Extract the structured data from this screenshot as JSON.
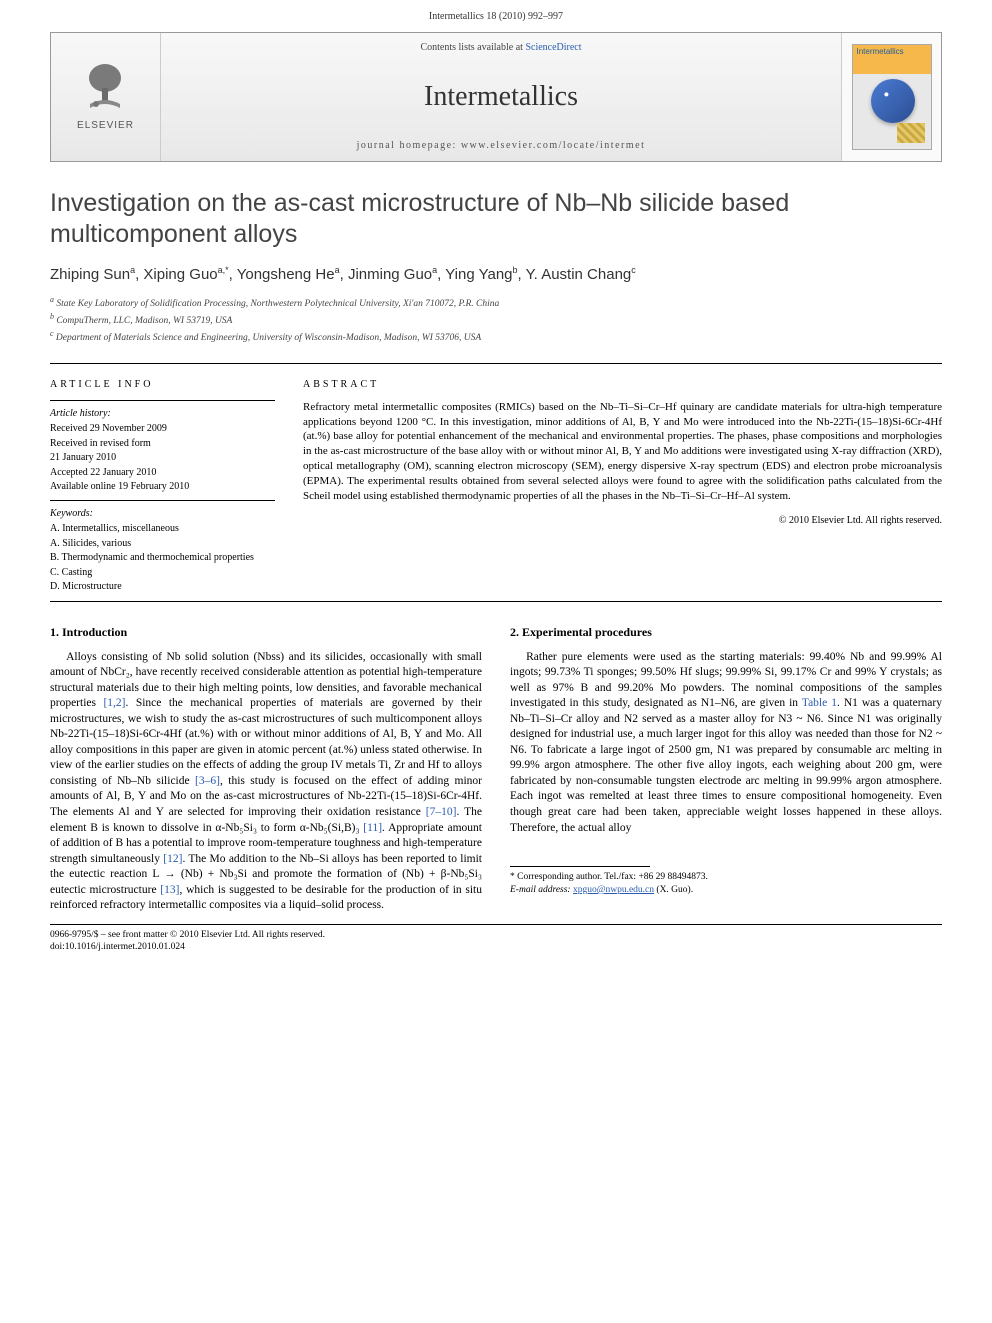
{
  "page_header": "Intermetallics 18 (2010) 992–997",
  "banner": {
    "contents_prefix": "Contents lists available at ",
    "contents_link": "ScienceDirect",
    "journal": "Intermetallics",
    "homepage": "journal homepage: www.elsevier.com/locate/intermet",
    "publisher": "ELSEVIER",
    "cover_title": "Intermetallics"
  },
  "title": "Investigation on the as-cast microstructure of Nb–Nb silicide based multicomponent alloys",
  "authors_html": "Zhiping Sun<sup>a</sup>, Xiping Guo<sup>a,*</sup>, Yongsheng He<sup>a</sup>, Jinming Guo<sup>a</sup>, Ying Yang<sup>b</sup>, Y. Austin Chang<sup>c</sup>",
  "affiliations": [
    "a State Key Laboratory of Solidification Processing, Northwestern Polytechnical University, Xi'an 710072, P.R. China",
    "b CompuTherm, LLC, Madison, WI 53719, USA",
    "c Department of Materials Science and Engineering, University of Wisconsin-Madison, Madison, WI 53706, USA"
  ],
  "info_left": {
    "heading": "ARTICLE INFO",
    "history_label": "Article history:",
    "history": [
      "Received 29 November 2009",
      "Received in revised form",
      "21 January 2010",
      "Accepted 22 January 2010",
      "Available online 19 February 2010"
    ],
    "keywords_label": "Keywords:",
    "keywords": [
      "A. Intermetallics, miscellaneous",
      "A. Silicides, various",
      "B. Thermodynamic and thermochemical properties",
      "C. Casting",
      "D. Microstructure"
    ]
  },
  "abstract": {
    "heading": "ABSTRACT",
    "text": "Refractory metal intermetallic composites (RMICs) based on the Nb–Ti–Si–Cr–Hf quinary are candidate materials for ultra-high temperature applications beyond 1200 °C. In this investigation, minor additions of Al, B, Y and Mo were introduced into the Nb-22Ti-(15–18)Si-6Cr-4Hf (at.%) base alloy for potential enhancement of the mechanical and environmental properties. The phases, phase compositions and morphologies in the as-cast microstructure of the base alloy with or without minor Al, B, Y and Mo additions were investigated using X-ray diffraction (XRD), optical metallography (OM), scanning electron microscopy (SEM), energy dispersive X-ray spectrum (EDS) and electron probe microanalysis (EPMA). The experimental results obtained from several selected alloys were found to agree with the solidification paths calculated from the Scheil model using established thermodynamic properties of all the phases in the Nb–Ti–Si–Cr–Hf–Al system.",
    "copyright": "© 2010 Elsevier Ltd. All rights reserved."
  },
  "sections": {
    "s1_heading": "1. Introduction",
    "s1_p1_a": "Alloys consisting of Nb solid solution (Nbss) and its silicides, occasionally with small amount of NbCr₂, have recently received considerable attention as potential high-temperature structural materials due to their high melting points, low densities, and favorable mechanical properties ",
    "s1_p1_cite1": "[1,2]",
    "s1_p1_b": ". Since the mechanical properties of materials are governed by their microstructures, we wish to study the as-cast microstructures of such multicomponent alloys Nb-22Ti-(15–18)Si-6Cr-4Hf (at.%) with or without minor additions of Al, B, Y and Mo. All alloy compositions in this paper are given in atomic percent (at.%) unless stated otherwise. In view of the earlier studies on the effects of adding the group IV metals Ti, Zr and Hf to alloys consisting of Nb–Nb silicide ",
    "s1_p1_cite2": "[3–6]",
    "s1_p1_c": ", this study is focused on the effect of adding minor amounts of Al, B, Y and Mo on the as-cast microstructures of Nb-22Ti-(15–18)Si-6Cr-4Hf. The elements Al and Y are selected for improving their oxidation resistance ",
    "s1_p1_cite3": "[7–10]",
    "s1_p1_d": ". The element B is known to dissolve in α-Nb₅Si₃ to form α-Nb₅(Si,B)₃ ",
    "s1_p1_cite4": "[11]",
    "s1_p1_e": ". Appropriate amount of addition of B has a potential to improve room-temperature toughness and high-temperature strength simultaneously ",
    "s1_p1_cite5": "[12]",
    "s1_p1_f": ". The Mo addition to the Nb–Si alloys has been reported to limit the eutectic reaction L → (Nb) + Nb₃Si and promote the formation of (Nb) + β-Nb₅Si₃ eutectic microstructure ",
    "s1_p1_cite6": "[13]",
    "s1_p1_g": ", which is suggested to be desirable for the production of in situ reinforced refractory intermetallic composites via a liquid–solid process.",
    "s2_heading": "2. Experimental procedures",
    "s2_p1_a": "Rather pure elements were used as the starting materials: 99.40% Nb and 99.99% Al ingots; 99.73% Ti sponges; 99.50% Hf slugs; 99.99% Si, 99.17% Cr and 99% Y crystals; as well as 97% B and 99.20% Mo powders. The nominal compositions of the samples investigated in this study, designated as N1–N6, are given in ",
    "s2_p1_tref": "Table 1",
    "s2_p1_b": ". N1 was a quaternary Nb–Ti–Si–Cr alloy and N2 served as a master alloy for N3 ~ N6. Since N1 was originally designed for industrial use, a much larger ingot for this alloy was needed than those for N2 ~ N6. To fabricate a large ingot of 2500 gm, N1 was prepared by consumable arc melting in 99.9% argon atmosphere. The other five alloy ingots, each weighing about 200 gm, were fabricated by non-consumable tungsten electrode arc melting in 99.99% argon atmosphere. Each ingot was remelted at least three times to ensure compositional homogeneity. Even though great care had been taken, appreciable weight losses happened in these alloys. Therefore, the actual alloy"
  },
  "footnotes": {
    "corr": "* Corresponding author. Tel./fax: +86 29 88494873.",
    "email_label": "E-mail address:",
    "email": "xpguo@nwpu.edu.cn",
    "email_tail": " (X. Guo)."
  },
  "footer": {
    "line1": "0966-9795/$ – see front matter © 2010 Elsevier Ltd. All rights reserved.",
    "line2": "doi:10.1016/j.intermet.2010.01.024"
  },
  "colors": {
    "link": "#2a5db0",
    "text": "#000000",
    "heading": "#434343"
  }
}
